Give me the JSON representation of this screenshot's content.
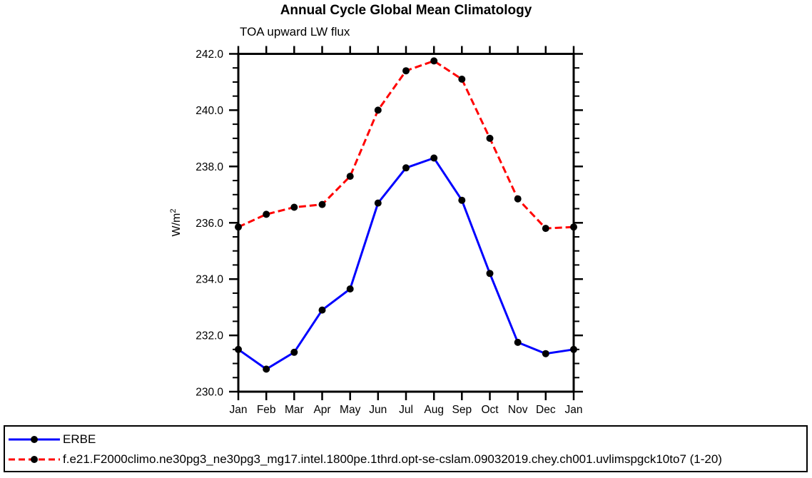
{
  "chart_data": {
    "type": "line",
    "title": "Annual Cycle Global Mean Climatology",
    "subtitle": "TOA upward LW flux",
    "ylabel": "W/m²",
    "xlabel": "",
    "categories": [
      "Jan",
      "Feb",
      "Mar",
      "Apr",
      "May",
      "Jun",
      "Jul",
      "Aug",
      "Sep",
      "Oct",
      "Nov",
      "Dec",
      "Jan"
    ],
    "ylim": [
      230.0,
      242.0
    ],
    "ytick_step": 2.0,
    "yminor_step": 0.5,
    "ytick_decimals": 1,
    "grid": false,
    "frame_color": "#000000",
    "marker": "filled-circle",
    "marker_color": "#000000",
    "legend_position": "bottom-box",
    "series": [
      {
        "name": "ERBE",
        "color": "#0000ff",
        "line_style": "solid",
        "values": [
          231.5,
          230.8,
          231.4,
          232.9,
          233.65,
          236.7,
          237.95,
          238.3,
          236.8,
          234.2,
          231.75,
          231.35,
          231.5
        ]
      },
      {
        "name": "f.e21.F2000climo.ne30pg3_ne30pg3_mg17.intel.1800pe.1thrd.opt-se-cslam.09032019.chey.ch001.uvlimspgck10to7 (1-20)",
        "color": "#ff0000",
        "line_style": "dashed",
        "values": [
          235.85,
          236.3,
          236.55,
          236.65,
          237.65,
          240.0,
          241.4,
          241.75,
          241.1,
          239.0,
          236.85,
          235.8,
          235.85
        ]
      }
    ]
  }
}
